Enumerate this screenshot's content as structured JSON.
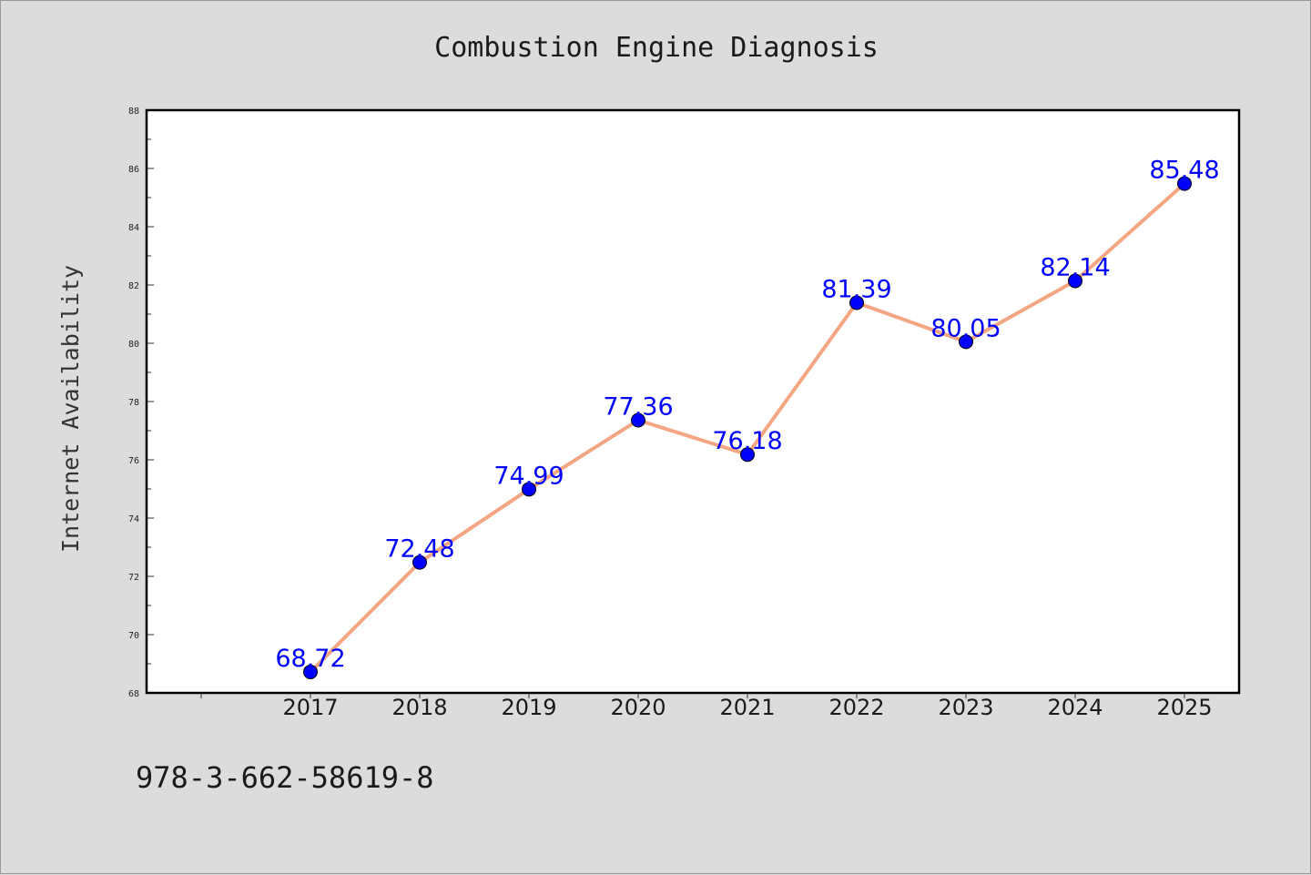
{
  "figure": {
    "title": "Combustion Engine Diagnosis",
    "footer_text": "978-3-662-58619-8"
  },
  "chart_data": {
    "type": "line",
    "title": "Combustion Engine Diagnosis",
    "xlabel": "",
    "ylabel": "Internet Availability",
    "categories": [
      "2017",
      "2018",
      "2019",
      "2020",
      "2021",
      "2022",
      "2023",
      "2024",
      "2025"
    ],
    "series": [
      {
        "values": [
          68.72,
          72.48,
          74.99,
          77.36,
          76.18,
          81.39,
          80.05,
          82.14,
          85.48
        ],
        "value_labels": [
          "68.72",
          "72.48",
          "74.99",
          "77.36",
          "76.18",
          "81.39",
          "80.05",
          "82.14",
          "85.48"
        ],
        "line_color": "#f4a582",
        "marker_color": "#0000ff",
        "label_color": "#0000ff"
      }
    ],
    "ylim": [
      68,
      88
    ],
    "yticks": [
      "68",
      "70",
      "72",
      "74",
      "76",
      "78",
      "80",
      "82",
      "84",
      "86",
      "88"
    ],
    "grid": false,
    "legend": "none",
    "background": "#dcdcdc",
    "plot_background": "#ffffff"
  }
}
